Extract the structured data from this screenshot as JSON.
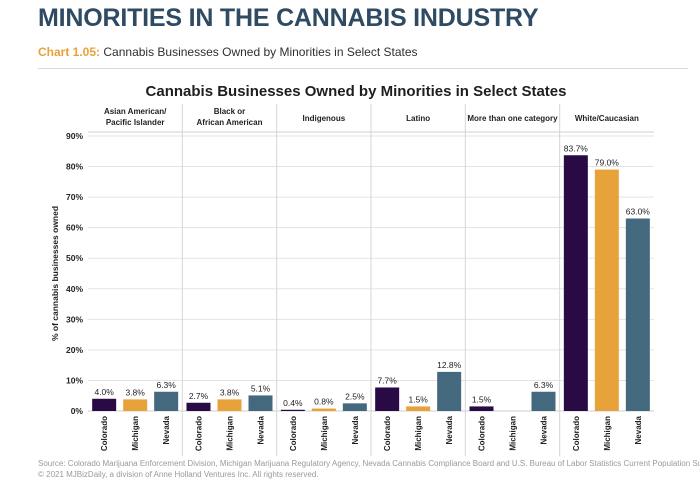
{
  "header": {
    "page_title": "MINORITIES IN THE CANNABIS INDUSTRY",
    "chart_number": "Chart 1.05:",
    "chart_caption": "Cannabis Businesses Owned by Minorities in Select States"
  },
  "colors": {
    "heading": "#2f4a63",
    "accent": "#e8a23a",
    "series": [
      "#2a0a45",
      "#e8a23a",
      "#44687e"
    ]
  },
  "chart_data": {
    "type": "bar",
    "title": "Cannabis Businesses Owned by Minorities in Select States",
    "ylabel": "% of cannabis businesses owned",
    "xlabel": "",
    "ylim": [
      0,
      90
    ],
    "yticks": [
      "0%",
      "10%",
      "20%",
      "30%",
      "40%",
      "50%",
      "60%",
      "70%",
      "80%",
      "90%"
    ],
    "grid": true,
    "groups": [
      {
        "label": "Asian American/ Pacific Islander",
        "values": [
          4.0,
          3.8,
          6.3
        ],
        "labels": [
          "4.0%",
          "3.8%",
          "6.3%"
        ]
      },
      {
        "label": "Black or African American",
        "values": [
          2.7,
          3.8,
          5.1
        ],
        "labels": [
          "2.7%",
          "3.8%",
          "5.1%"
        ]
      },
      {
        "label": "Indigenous",
        "values": [
          0.4,
          0.8,
          2.5
        ],
        "labels": [
          "0.4%",
          "0.8%",
          "2.5%"
        ]
      },
      {
        "label": "Latino",
        "values": [
          7.7,
          1.5,
          12.8
        ],
        "labels": [
          "7.7%",
          "1.5%",
          "12.8%"
        ]
      },
      {
        "label": "More than one category",
        "values": [
          1.5,
          null,
          6.3
        ],
        "labels": [
          "1.5%",
          "",
          "6.3%"
        ]
      },
      {
        "label": "White/Caucasian",
        "values": [
          83.7,
          79.0,
          63.0
        ],
        "labels": [
          "83.7%",
          "79.0%",
          "63.0%"
        ]
      }
    ],
    "states": [
      "Colorado",
      "Michigan",
      "Nevada"
    ]
  },
  "footer": {
    "source": "Source: Colorado Marijuana Enforcement Division, Michigan Marijuana Regulatory Agency, Nevada Cannabis Compliance Board and U.S. Bureau of Labor Statistics Current Population Survey",
    "copyright": "© 2021 MJBizDaily, a division of Anne Holland Ventures Inc. All rights reserved."
  }
}
